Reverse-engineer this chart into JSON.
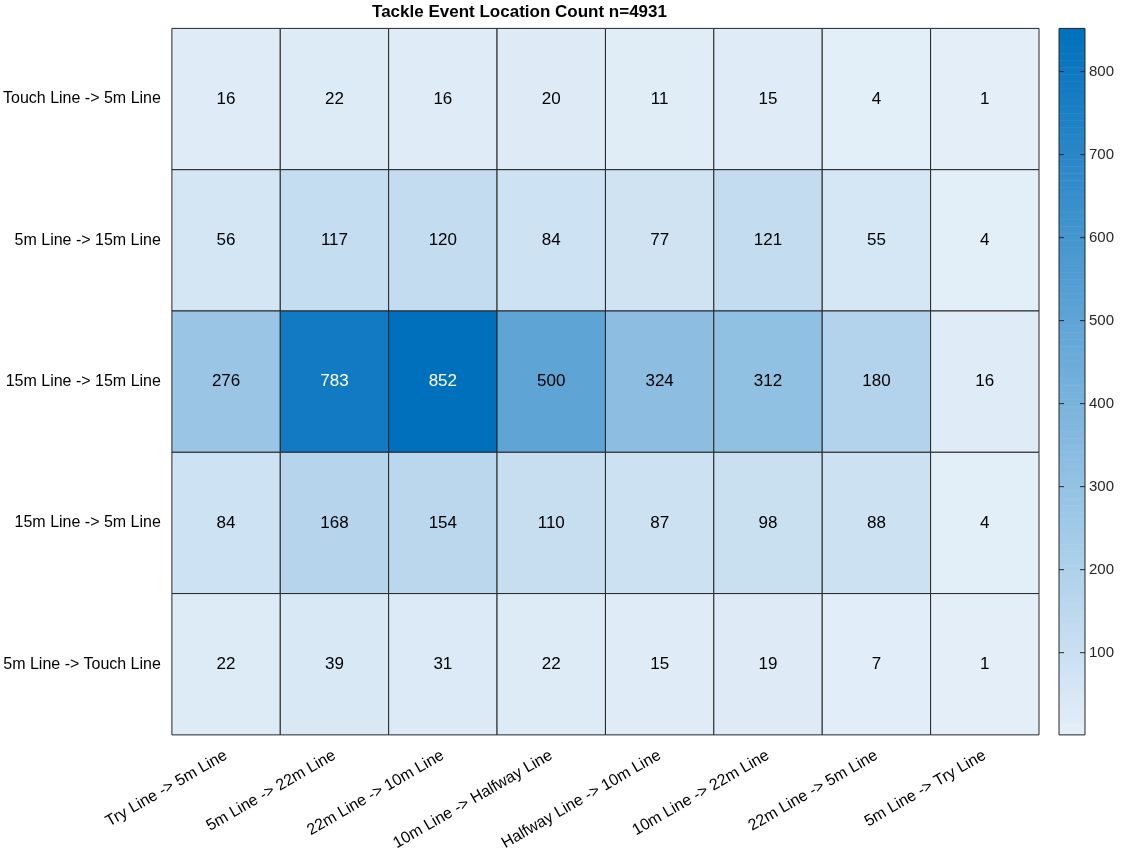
{
  "chart_data": {
    "type": "heatmap",
    "title": "Tackle Event Location Count n=4931",
    "categories": [
      "Try Line -> 5m Line",
      "5m Line -> 22m Line",
      "22m Line -> 10m Line",
      "10m Line -> Halfway Line",
      "Halfway Line -> 10m Line",
      "10m Line -> 22m Line",
      "22m Line -> 5m Line",
      "5m Line -> Try Line"
    ],
    "y_categories": [
      "Touch Line -> 5m Line",
      "5m Line -> 15m Line",
      "15m Line -> 15m Line",
      "15m Line -> 5m Line",
      "5m Line -> Touch Line"
    ],
    "cells": [
      [
        16,
        22,
        16,
        20,
        11,
        15,
        4,
        1
      ],
      [
        56,
        117,
        120,
        84,
        77,
        121,
        55,
        4
      ],
      [
        276,
        783,
        852,
        500,
        324,
        312,
        180,
        16
      ],
      [
        84,
        168,
        154,
        110,
        87,
        98,
        88,
        4
      ],
      [
        22,
        39,
        31,
        22,
        15,
        19,
        7,
        1
      ]
    ],
    "clim": [
      1,
      852
    ],
    "cticks": [
      100,
      200,
      300,
      400,
      500,
      600,
      700,
      800
    ],
    "data_labels": true
  }
}
